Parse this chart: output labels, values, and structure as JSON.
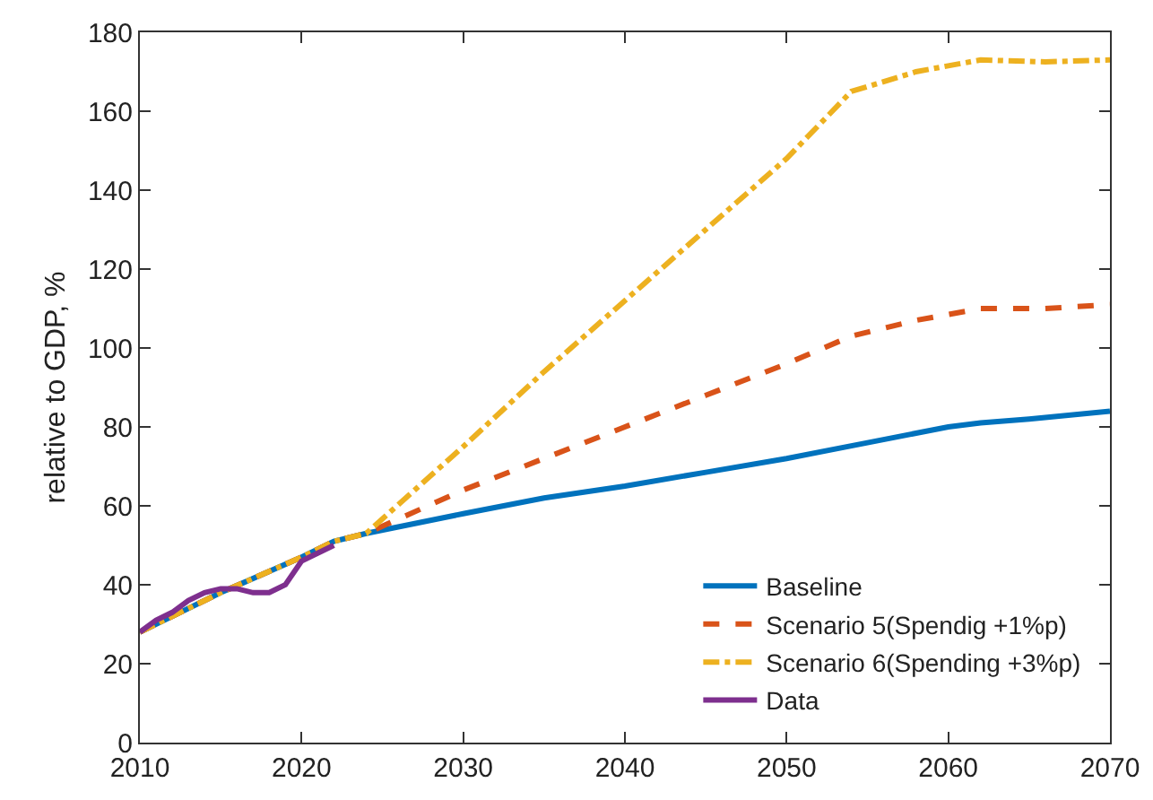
{
  "chart_data": {
    "type": "line",
    "ylabel": "relative to GDP, %",
    "xlim": [
      2010,
      2070
    ],
    "ylim": [
      0,
      180
    ],
    "xticks": [
      2010,
      2020,
      2030,
      2040,
      2050,
      2060,
      2070
    ],
    "yticks": [
      0,
      20,
      40,
      60,
      80,
      100,
      120,
      140,
      160,
      180
    ],
    "grid": false,
    "legend": "bottom right",
    "marker": "none",
    "series": [
      {
        "name": "Baseline",
        "color": "#0072bd",
        "line_style": "solid",
        "x": [
          2010,
          2015,
          2020,
          2022,
          2024,
          2030,
          2035,
          2040,
          2045,
          2050,
          2055,
          2060,
          2062,
          2065,
          2070
        ],
        "values": [
          28,
          38,
          47,
          51,
          53,
          58,
          62,
          65,
          68.5,
          72,
          76,
          80,
          81,
          82,
          84
        ]
      },
      {
        "name": "Scenario 5(Spendig +1%p)",
        "color": "#d95319",
        "line_style": "dashed",
        "x": [
          2010,
          2015,
          2020,
          2022,
          2024,
          2030,
          2035,
          2040,
          2045,
          2050,
          2054,
          2058,
          2062,
          2066,
          2070
        ],
        "values": [
          28,
          38,
          47,
          51,
          53,
          64,
          72,
          80,
          88,
          96,
          103,
          107,
          110,
          110,
          111
        ]
      },
      {
        "name": "Scenario 6(Spending +3%p)",
        "color": "#edb120",
        "line_style": "dashdot",
        "x": [
          2010,
          2015,
          2020,
          2022,
          2024,
          2030,
          2035,
          2040,
          2045,
          2050,
          2054,
          2058,
          2062,
          2066,
          2070
        ],
        "values": [
          28,
          38,
          47,
          51,
          53,
          75,
          94,
          112,
          130,
          148,
          165,
          170,
          173,
          172.5,
          173
        ]
      },
      {
        "name": "Data",
        "color": "#7e2f8e",
        "line_style": "solid",
        "x": [
          2010,
          2011,
          2012,
          2013,
          2014,
          2015,
          2016,
          2017,
          2018,
          2019,
          2020,
          2021,
          2022
        ],
        "values": [
          28,
          31,
          33,
          36,
          38,
          39,
          39,
          38,
          38,
          40,
          46,
          48,
          50
        ]
      }
    ]
  }
}
